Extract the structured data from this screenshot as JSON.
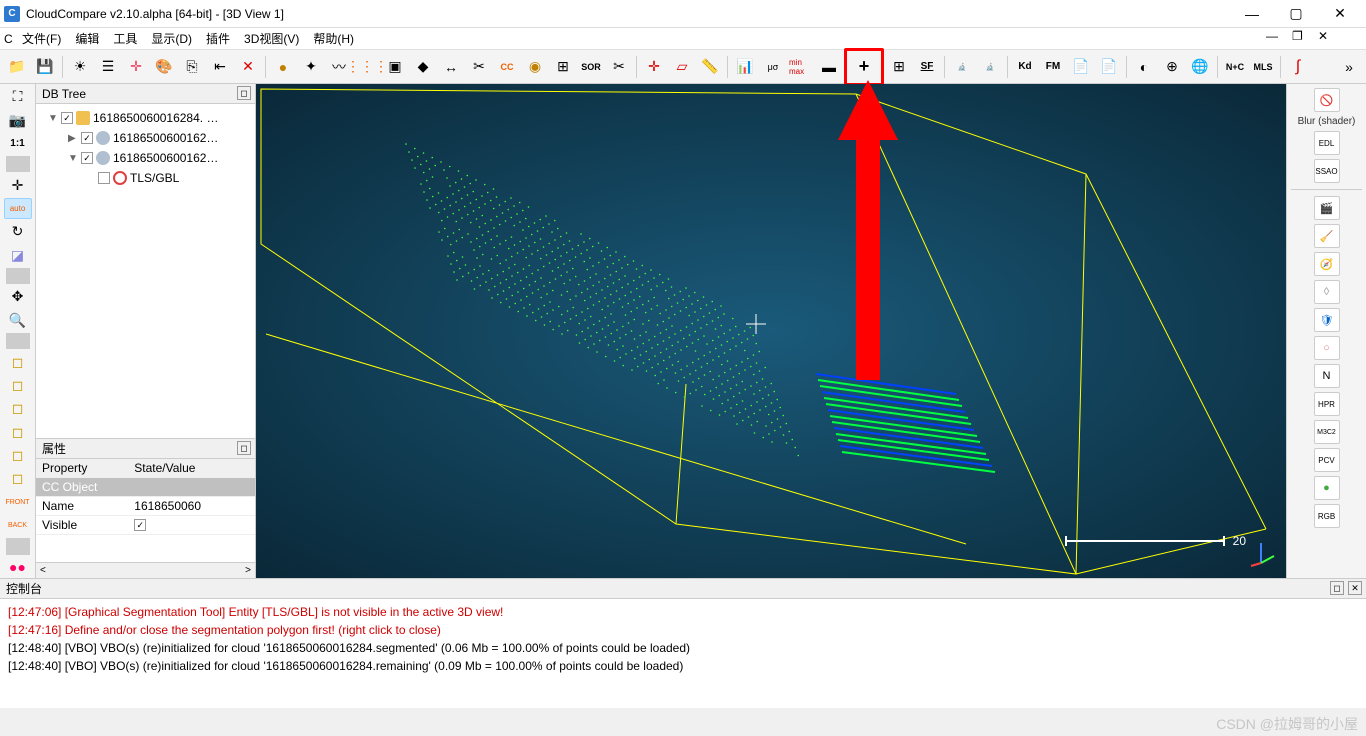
{
  "window": {
    "title": "CloudCompare v2.10.alpha [64-bit] - [3D View 1]",
    "icon_label": "C"
  },
  "menu": {
    "file": "文件(F)",
    "edit": "编辑",
    "tools": "工具",
    "display": "显示(D)",
    "plugins": "插件",
    "view3d": "3D视图(V)",
    "help": "帮助(H)"
  },
  "toolbar_labels": {
    "sor": "SOR",
    "ccc": "CC",
    "sf": "SF",
    "kd": "Kd",
    "fm": "FM",
    "nc": "N+C",
    "mls": "MLS",
    "canupo_cls": "CANUPO Classify",
    "canupo_trn": "CANUPO Train"
  },
  "left_tools": {
    "ratio": "1:1",
    "auto": "auto",
    "front": "FRONT",
    "back": "BACK"
  },
  "db_tree": {
    "title": "DB Tree",
    "root": "1618650060016284. …",
    "child1": "16186500600162…",
    "child2": "16186500600162…",
    "tls": "TLS/GBL"
  },
  "properties": {
    "title": "属性",
    "col_property": "Property",
    "col_state": "State/Value",
    "cc_object": "CC Object",
    "name_label": "Name",
    "name_value": "1618650060",
    "visible_label": "Visible"
  },
  "console": {
    "title": "控制台",
    "lines": [
      {
        "text": "[12:47:06] [Graphical Segmentation Tool] Entity [TLS/GBL] is not visible in the active 3D view!",
        "error": true
      },
      {
        "text": "[12:47:16] Define and/or close the segmentation polygon first! (right click to close)",
        "error": true
      },
      {
        "text": "[12:48:40] [VBO] VBO(s) (re)initialized for cloud '1618650060016284.segmented' (0.06 Mb = 100.00% of points could be loaded)",
        "error": false
      },
      {
        "text": "[12:48:40] [VBO] VBO(s) (re)initialized for cloud '1618650060016284.remaining' (0.09 Mb = 100.00% of points could be loaded)",
        "error": false
      }
    ]
  },
  "right_panel": {
    "blur_label": "Blur (shader)",
    "edl": "EDL",
    "ssao": "SSAO",
    "n": "N",
    "hpr": "HPR",
    "m3c2": "M3C2",
    "pcv": "PCV",
    "rgb": "RGB"
  },
  "viewport": {
    "scale_value": "20",
    "bg_gradient_inner": "#1a5a7a",
    "bg_gradient_outer": "#0a2838",
    "bbox_color": "#ffff00",
    "cloud1_color": "#40ff40",
    "cloud2_colors": [
      "#0040ff",
      "#00ff00"
    ],
    "arrow_color": "#ff0000"
  },
  "watermark": "CSDN @拉姆哥的小屋"
}
